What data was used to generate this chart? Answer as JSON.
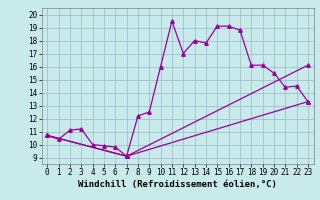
{
  "xlabel": "Windchill (Refroidissement éolien,°C)",
  "background_color": "#c8eaea",
  "grid_color": "#9ab8c8",
  "line_color": "#990099",
  "xlim": [
    -0.5,
    23.5
  ],
  "ylim": [
    8.5,
    20.5
  ],
  "xticks": [
    0,
    1,
    2,
    3,
    4,
    5,
    6,
    7,
    8,
    9,
    10,
    11,
    12,
    13,
    14,
    15,
    16,
    17,
    18,
    19,
    20,
    21,
    22,
    23
  ],
  "yticks": [
    9,
    10,
    11,
    12,
    13,
    14,
    15,
    16,
    17,
    18,
    19,
    20
  ],
  "line1_x": [
    0,
    1,
    2,
    3,
    4,
    5,
    6,
    7,
    8,
    9,
    10,
    11,
    12,
    13,
    14,
    15,
    16,
    17,
    18,
    19,
    20,
    21,
    22,
    23
  ],
  "line1_y": [
    10.7,
    10.4,
    11.1,
    11.2,
    10.0,
    9.9,
    9.8,
    9.1,
    12.2,
    12.5,
    16.0,
    19.5,
    17.0,
    18.0,
    17.8,
    19.1,
    19.1,
    18.8,
    16.1,
    16.1,
    15.5,
    14.4,
    14.5,
    13.3
  ],
  "line2_x": [
    0,
    7,
    23
  ],
  "line2_y": [
    10.7,
    9.1,
    13.3
  ],
  "line3_x": [
    0,
    7,
    23
  ],
  "line3_y": [
    10.7,
    9.1,
    16.1
  ],
  "marker": "^",
  "markersize": 2.5,
  "linewidth": 0.9,
  "xlabel_fontsize": 6.5,
  "tick_fontsize": 5.5
}
